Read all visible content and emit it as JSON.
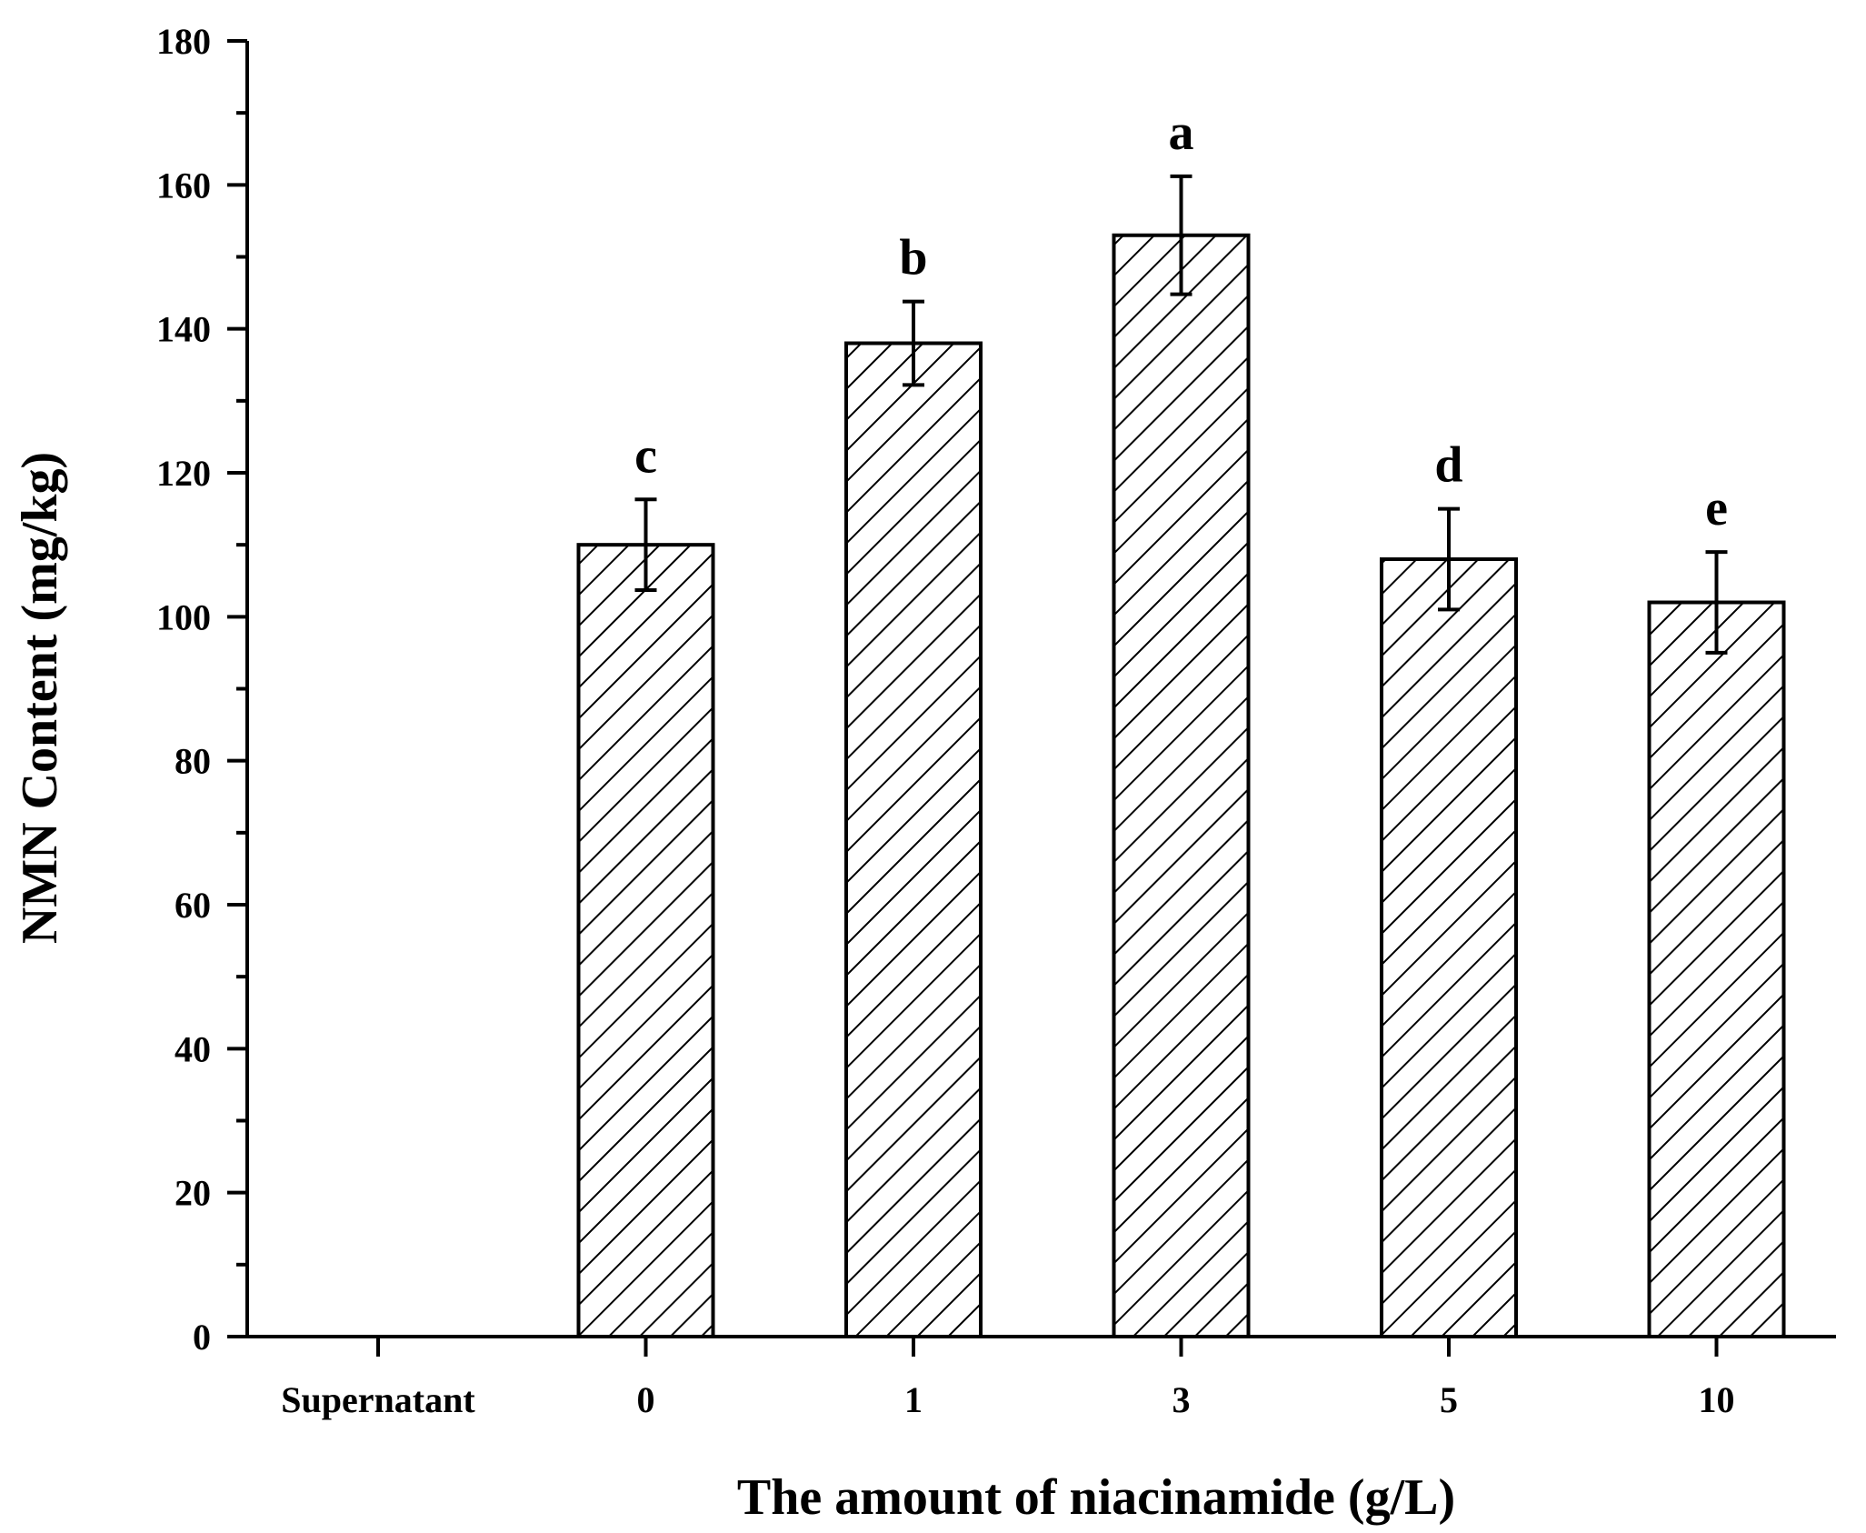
{
  "chart_data": {
    "type": "bar",
    "title": "",
    "xlabel": "The amount of niacinamide (g/L)",
    "ylabel": "NMN Content (mg/kg)",
    "categories": [
      "Supernatant",
      "0",
      "1",
      "3",
      "5",
      "10"
    ],
    "values": [
      0,
      110,
      138,
      153,
      108,
      102
    ],
    "errors": [
      0,
      6.3,
      5.8,
      8.2,
      7.0,
      7.0
    ],
    "significance_letters": [
      "",
      "c",
      "b",
      "a",
      "d",
      "e"
    ],
    "ylim": [
      0,
      180
    ],
    "yticks": [
      0,
      20,
      40,
      60,
      80,
      100,
      120,
      140,
      160,
      180
    ],
    "grid": false,
    "bar_fill": "diagonal-hatch",
    "colors": {
      "stroke": "#000000",
      "background": "#ffffff"
    }
  }
}
